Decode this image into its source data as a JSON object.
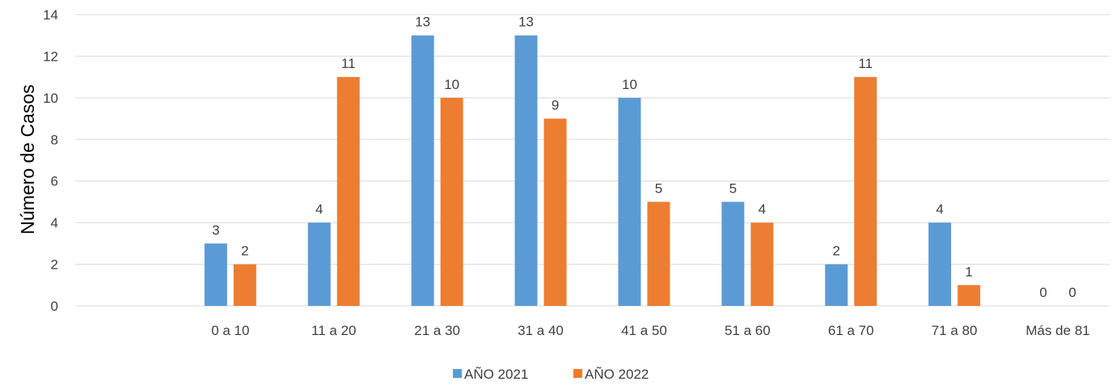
{
  "chart_data": {
    "type": "bar",
    "categories": [
      "",
      "0 a 10",
      "11 a 20",
      "21 a 30",
      "31 a 40",
      "41 a 50",
      "51 a 60",
      "61 a 70",
      "71 a 80",
      "Más de 81"
    ],
    "series": [
      {
        "name": "AÑO 2021",
        "color": "#5b9bd5",
        "values": [
          null,
          3,
          4,
          13,
          13,
          10,
          5,
          2,
          4,
          0
        ]
      },
      {
        "name": "AÑO 2022",
        "color": "#ed7d31",
        "values": [
          null,
          2,
          11,
          10,
          9,
          5,
          4,
          11,
          1,
          0
        ]
      }
    ],
    "title": "",
    "xlabel": "",
    "ylabel": "Número de Casos",
    "ylim": [
      0,
      14
    ],
    "yticks": [
      0,
      2,
      4,
      6,
      8,
      10,
      12,
      14
    ],
    "grid": true,
    "legend_position": "bottom"
  }
}
